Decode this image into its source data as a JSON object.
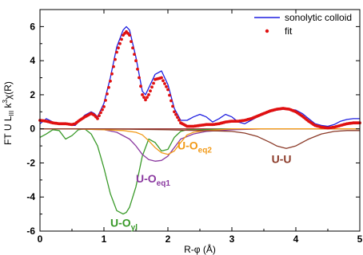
{
  "chart_data": {
    "type": "line",
    "xlabel": "R-φ (Å)",
    "ylabel_parts": [
      "FT U L",
      "III",
      " k",
      "3",
      "χ(R)"
    ],
    "xlim": [
      0,
      5
    ],
    "ylim": [
      -6,
      7
    ],
    "xticks": [
      "0",
      "1",
      "2",
      "3",
      "4",
      "5"
    ],
    "yticks": [
      "-6",
      "-4",
      "-2",
      "0",
      "2",
      "4",
      "6"
    ],
    "legend_position": "top-right",
    "colors": {
      "colloid": "#1f1fe0",
      "fit": "#e01010",
      "u_oyl": "#3a9a2a",
      "u_oeq1": "#8b3aa0",
      "u_oeq2": "#f29a18",
      "u_u": "#8b3a28",
      "zero": "#8b1a1a"
    },
    "series": [
      {
        "name": "sonolytic colloid",
        "style": "line",
        "x": [
          0.0,
          0.1,
          0.2,
          0.3,
          0.4,
          0.5,
          0.55,
          0.6,
          0.7,
          0.8,
          0.85,
          0.9,
          1.0,
          1.1,
          1.2,
          1.3,
          1.35,
          1.4,
          1.5,
          1.6,
          1.65,
          1.7,
          1.8,
          1.9,
          2.0,
          2.1,
          2.2,
          2.3,
          2.4,
          2.5,
          2.6,
          2.7,
          2.8,
          2.9,
          3.0,
          3.1,
          3.2,
          3.3,
          3.4,
          3.5,
          3.6,
          3.7,
          3.8,
          3.9,
          4.0,
          4.1,
          4.2,
          4.3,
          4.4,
          4.5,
          4.6,
          4.7,
          4.8,
          4.9,
          5.0
        ],
        "y": [
          0.3,
          0.6,
          0.4,
          0.3,
          0.35,
          0.2,
          0.2,
          0.4,
          0.8,
          1.0,
          0.9,
          0.7,
          1.5,
          3.0,
          4.8,
          5.8,
          6.0,
          5.8,
          4.2,
          2.2,
          2.0,
          2.4,
          3.2,
          3.4,
          2.6,
          1.2,
          0.5,
          0.5,
          0.7,
          0.85,
          0.7,
          0.4,
          0.6,
          0.85,
          0.7,
          0.4,
          0.3,
          0.5,
          0.7,
          0.85,
          1.0,
          1.1,
          1.15,
          1.15,
          1.1,
          0.9,
          0.6,
          0.3,
          0.2,
          0.15,
          0.25,
          0.45,
          0.55,
          0.6,
          0.6
        ]
      },
      {
        "name": "fit",
        "style": "dots",
        "x": [
          0.0,
          0.1,
          0.2,
          0.3,
          0.4,
          0.5,
          0.55,
          0.6,
          0.7,
          0.8,
          0.85,
          0.9,
          1.0,
          1.1,
          1.2,
          1.3,
          1.35,
          1.4,
          1.5,
          1.6,
          1.65,
          1.7,
          1.8,
          1.9,
          2.0,
          2.1,
          2.2,
          2.3,
          2.4,
          2.5,
          2.6,
          2.7,
          2.8,
          2.9,
          3.0,
          3.1,
          3.2,
          3.3,
          3.4,
          3.5,
          3.6,
          3.7,
          3.8,
          3.9,
          4.0,
          4.1,
          4.2,
          4.3,
          4.4,
          4.5,
          4.6,
          4.7,
          4.8,
          4.9,
          5.0
        ],
        "y": [
          0.5,
          0.45,
          0.35,
          0.3,
          0.3,
          0.25,
          0.3,
          0.45,
          0.7,
          0.9,
          0.8,
          0.6,
          1.3,
          2.8,
          4.5,
          5.5,
          5.7,
          5.5,
          4.0,
          2.0,
          1.7,
          2.0,
          2.9,
          3.0,
          2.3,
          1.0,
          0.35,
          0.15,
          0.15,
          0.2,
          0.25,
          0.25,
          0.3,
          0.4,
          0.45,
          0.45,
          0.5,
          0.6,
          0.75,
          0.9,
          1.05,
          1.15,
          1.2,
          1.15,
          1.0,
          0.75,
          0.45,
          0.2,
          0.1,
          0.05,
          0.1,
          0.2,
          0.3,
          0.35,
          0.35
        ]
      },
      {
        "name": "U-O_yl",
        "style": "line",
        "x": [
          0.0,
          0.1,
          0.2,
          0.3,
          0.4,
          0.5,
          0.6,
          0.7,
          0.8,
          0.9,
          1.0,
          1.1,
          1.2,
          1.3,
          1.35,
          1.4,
          1.5,
          1.6,
          1.7,
          1.8,
          1.9,
          2.0,
          2.1,
          2.2,
          2.3,
          2.5,
          3.0,
          5.0
        ],
        "y": [
          -0.5,
          -0.3,
          -0.05,
          -0.1,
          -0.6,
          -0.4,
          -0.05,
          0.0,
          -0.3,
          -1.0,
          -2.3,
          -3.8,
          -4.8,
          -5.0,
          -4.9,
          -4.6,
          -3.4,
          -1.6,
          -0.6,
          -0.8,
          -1.3,
          -1.2,
          -0.5,
          -0.15,
          -0.05,
          -0.05,
          0.0,
          0.0
        ]
      },
      {
        "name": "U-O_eq1",
        "style": "line",
        "x": [
          0.0,
          0.5,
          1.0,
          1.2,
          1.4,
          1.5,
          1.6,
          1.7,
          1.8,
          1.9,
          2.0,
          2.1,
          2.2,
          2.4,
          2.6,
          2.8,
          3.0,
          3.5,
          5.0
        ],
        "y": [
          0.0,
          0.0,
          -0.05,
          -0.2,
          -0.6,
          -1.0,
          -1.5,
          -1.8,
          -1.9,
          -1.85,
          -1.6,
          -1.1,
          -0.6,
          -0.3,
          -0.15,
          -0.1,
          -0.05,
          0.0,
          0.0
        ]
      },
      {
        "name": "U-O_eq2",
        "style": "line",
        "x": [
          0.0,
          0.5,
          1.0,
          1.3,
          1.5,
          1.6,
          1.7,
          1.8,
          1.9,
          2.0,
          2.1,
          2.2,
          2.3,
          2.4,
          2.6,
          2.8,
          3.0,
          5.0
        ],
        "y": [
          0.0,
          0.0,
          -0.05,
          -0.1,
          -0.2,
          -0.35,
          -0.7,
          -1.1,
          -1.4,
          -1.5,
          -1.3,
          -0.8,
          -0.35,
          -0.2,
          -0.1,
          -0.05,
          0.0,
          0.0
        ]
      },
      {
        "name": "U-U",
        "style": "line",
        "x": [
          0.0,
          1.0,
          2.0,
          2.5,
          3.0,
          3.2,
          3.4,
          3.6,
          3.7,
          3.8,
          3.85,
          3.9,
          4.0,
          4.2,
          4.4,
          4.6,
          4.8,
          5.0
        ],
        "y": [
          0.0,
          0.0,
          -0.05,
          -0.1,
          -0.15,
          -0.25,
          -0.45,
          -0.8,
          -1.0,
          -1.1,
          -1.15,
          -1.1,
          -1.0,
          -0.6,
          -0.3,
          -0.15,
          -0.1,
          -0.1
        ]
      }
    ],
    "annotations": [
      {
        "base": "U-O",
        "sub": "yl",
        "series": "U-O_yl",
        "x": 1.1,
        "y": -5.75
      },
      {
        "base": "U-O",
        "sub": "eq1",
        "series": "U-O_eq1",
        "x": 1.5,
        "y": -3.15
      },
      {
        "base": "U-O",
        "sub": "eq2",
        "series": "U-O_eq2",
        "x": 2.15,
        "y": -1.2
      },
      {
        "base": "U-U",
        "sub": "",
        "series": "U-U",
        "x": 3.62,
        "y": -2.0
      }
    ],
    "legend": [
      {
        "label": "sonolytic colloid",
        "series": "sonolytic colloid",
        "style": "line"
      },
      {
        "label": "fit",
        "series": "fit",
        "style": "dots"
      }
    ]
  }
}
